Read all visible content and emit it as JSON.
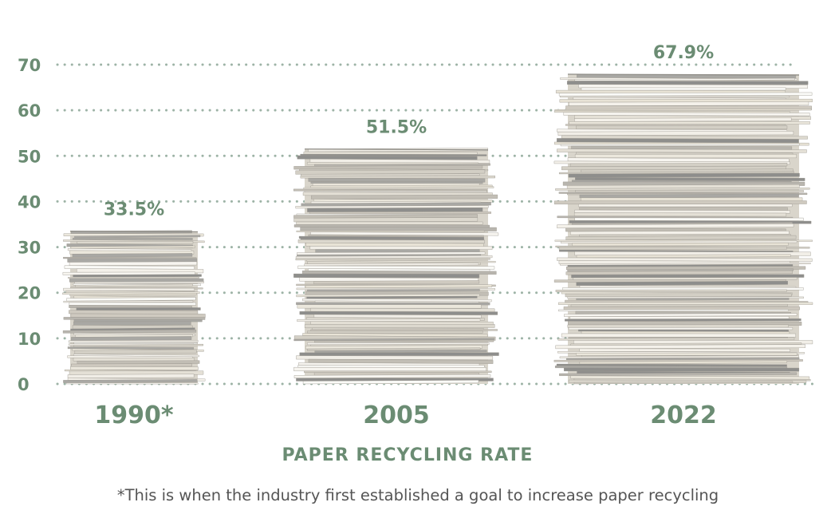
{
  "colors": {
    "accent": "#6b8c73",
    "grid": "#9db3a6",
    "footnote_text": "#555555",
    "paper_light": "#eeebe4",
    "paper_dark": "#8e8e8c"
  },
  "chart_data": {
    "type": "bar",
    "categories": [
      "1990*",
      "2005",
      "2022"
    ],
    "values": [
      33.5,
      51.5,
      67.9
    ],
    "data_labels": [
      "33.5%",
      "51.5%",
      "67.9%"
    ],
    "yticks": [
      "0",
      "10",
      "20",
      "30",
      "40",
      "50",
      "60",
      "70"
    ],
    "ylim": [
      0,
      70
    ],
    "xlabel": "PAPER RECYCLING RATE",
    "grid": true,
    "bar_style": "stack-of-paper"
  },
  "footnote": "*This is when the industry first established a goal to increase paper recycling"
}
